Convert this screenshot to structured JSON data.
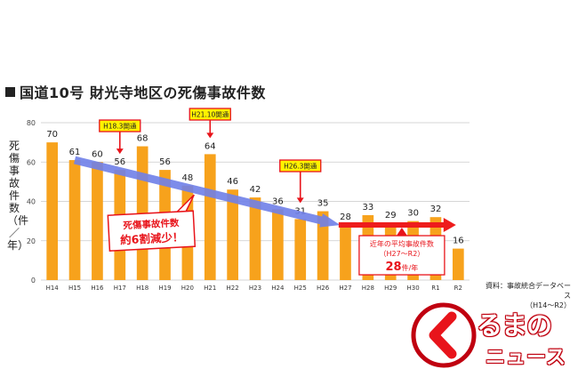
{
  "title": "国道10号 財光寺地区の死傷事故件数",
  "ylabel": "死傷事故件数（件／年）",
  "source": {
    "line1": "資料：事故統合データベース",
    "line2": "（H14～R2）"
  },
  "logo": {
    "line1": "るまの",
    "line2": "ニュース"
  },
  "colors": {
    "bar": "#f7a21c",
    "arrow_blue": "#6f7fe8",
    "arrow_red": "#ee1c1c",
    "callout_yellow": "#fff200",
    "callout_red": "#e8141b"
  },
  "chart_data": {
    "type": "bar",
    "categories": [
      "H14",
      "H15",
      "H16",
      "H17",
      "H18",
      "H19",
      "H20",
      "H21",
      "H22",
      "H23",
      "H24",
      "H25",
      "H26",
      "H27",
      "H28",
      "H29",
      "H30",
      "R1",
      "R2"
    ],
    "values": [
      70,
      61,
      60,
      56,
      68,
      56,
      48,
      64,
      46,
      42,
      36,
      31,
      35,
      28,
      33,
      29,
      30,
      32,
      16
    ],
    "ylim": [
      0,
      80
    ],
    "yticks": [
      0,
      20,
      40,
      60,
      80
    ],
    "grid": true,
    "annotations": {
      "openings": [
        {
          "label": "H18.3開通",
          "category": "H17"
        },
        {
          "label": "H21.10開通",
          "category": "H21"
        },
        {
          "label": "H26.3開通",
          "category": "H25"
        }
      ],
      "reduction": {
        "line1": "死傷事故件数",
        "line2": "約6割減少！"
      },
      "average": {
        "line1": "近年の平均事故件数",
        "line2": "（H27～R2）",
        "value": "28",
        "unit": "件/年"
      }
    }
  }
}
